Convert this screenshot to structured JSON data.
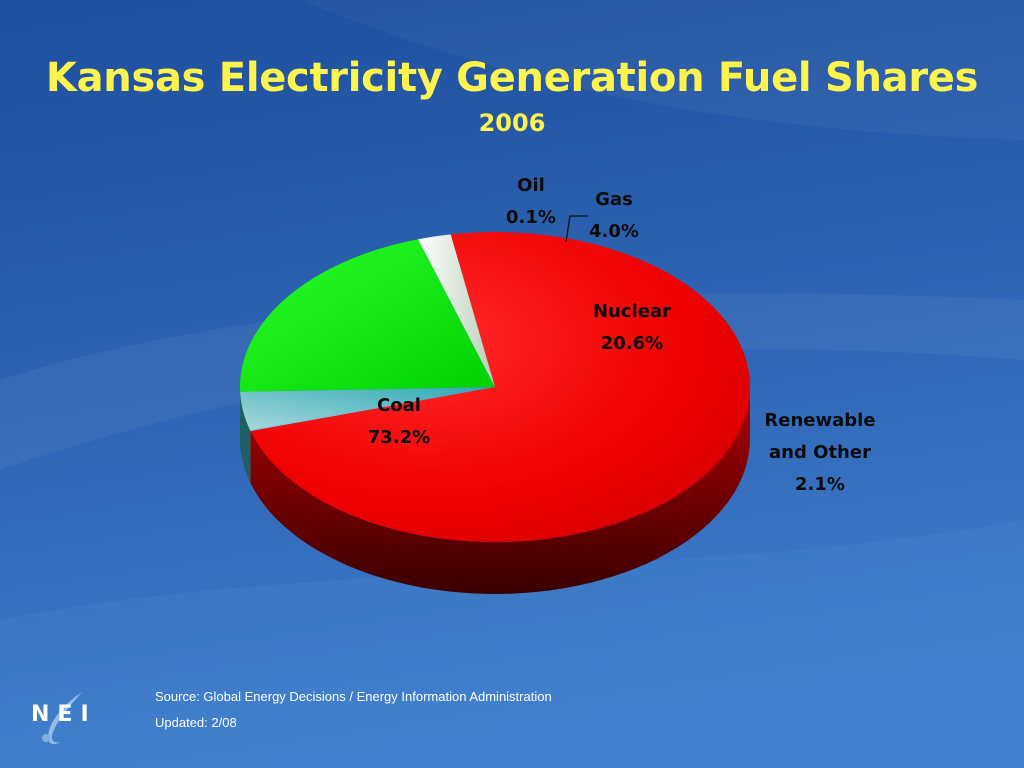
{
  "slide": {
    "title": "Kansas Electricity Generation Fuel Shares",
    "subtitle": "2006",
    "source": "Source: Global Energy Decisions / Energy Information Administration",
    "updated": "Updated: 2/08",
    "logo_text": "NEI"
  },
  "colors": {
    "background_dark": "#1C4E9C",
    "background_light": "#3F7BC9",
    "title": "#FFF34D",
    "coal": "#FF0000",
    "nuclear": "#00F000",
    "gas": "#40B8C0",
    "oil": "#7FD6E0",
    "renewable": "#E6F0E6"
  },
  "chart_data": {
    "type": "pie",
    "categories": [
      "Coal",
      "Oil",
      "Gas",
      "Nuclear",
      "Renewable and Other"
    ],
    "values": [
      73.2,
      0.1,
      4.0,
      20.6,
      2.1
    ],
    "data_labels": [
      "73.2%",
      "0.1%",
      "4.0%",
      "20.6%",
      "2.1%"
    ],
    "label_lines": {
      "Coal": [
        "Coal",
        "73.2%"
      ],
      "Oil": [
        "Oil",
        "0.1%"
      ],
      "Gas": [
        "Gas",
        "4.0%"
      ],
      "Nuclear": [
        "Nuclear",
        "20.6%"
      ],
      "Renewable and Other": [
        "Renewable",
        "and Other",
        "2.1%"
      ]
    },
    "style": "3d",
    "legend": "none"
  }
}
